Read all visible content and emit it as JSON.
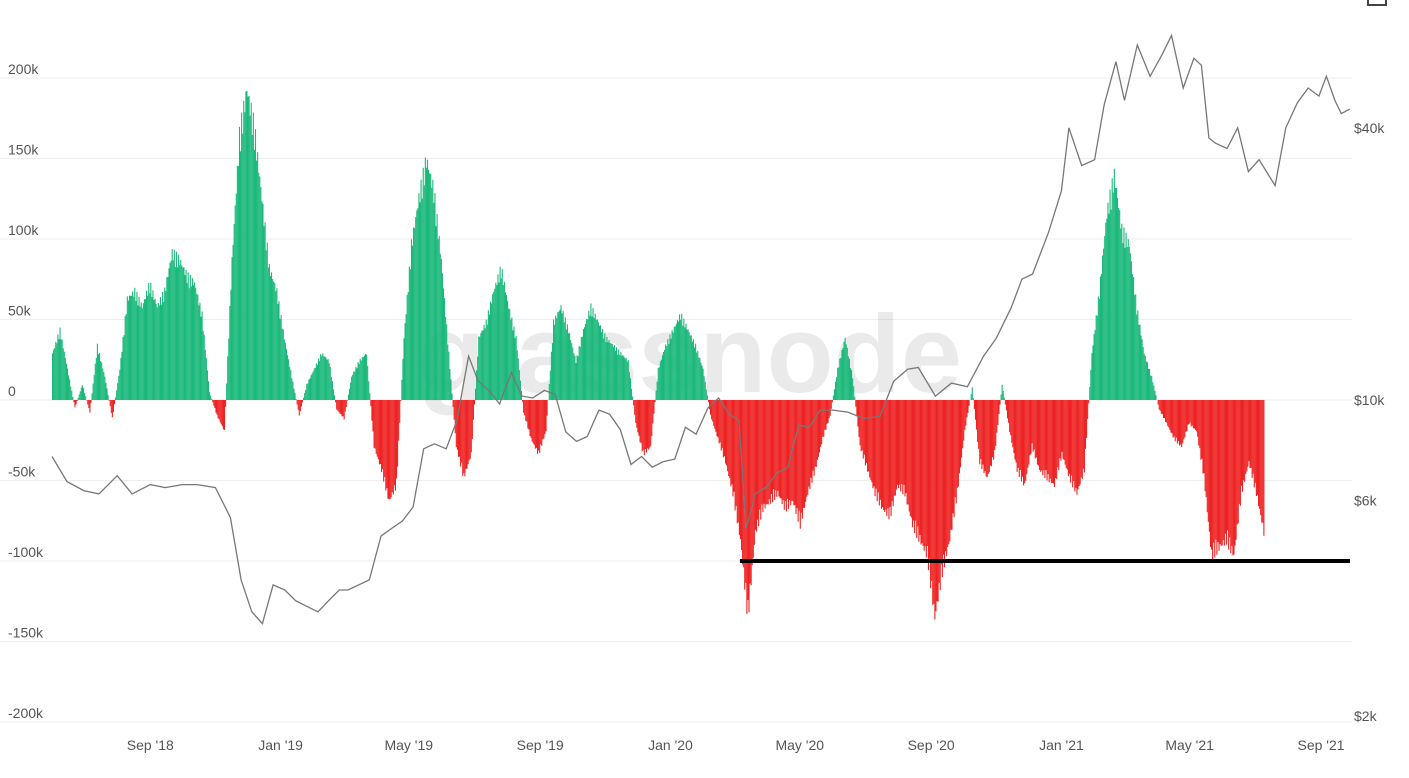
{
  "watermark": "glassnode",
  "chart_data": {
    "type": "bar",
    "title": "",
    "xlabel": "",
    "ylabel": "",
    "ylim": [
      -200000,
      200000
    ],
    "y2_scale": "log",
    "y2lim": [
      2000,
      60000
    ],
    "grid": true,
    "bar_colors": {
      "positive": "#1ab87a",
      "negative": "#ee2222"
    },
    "price_color": "#777777",
    "y_ticks": [
      {
        "value": 200000,
        "label": "200k"
      },
      {
        "value": 150000,
        "label": "150k"
      },
      {
        "value": 100000,
        "label": "100k"
      },
      {
        "value": 50000,
        "label": "50k"
      },
      {
        "value": 0,
        "label": "0"
      },
      {
        "value": -50000,
        "label": "-50k"
      },
      {
        "value": -100000,
        "label": "-100k"
      },
      {
        "value": -150000,
        "label": "-150k"
      },
      {
        "value": -200000,
        "label": "-200k"
      }
    ],
    "y2_ticks": [
      {
        "value": 40000,
        "label": "$40k"
      },
      {
        "value": 10000,
        "label": "$10k"
      },
      {
        "value": 6000,
        "label": "$6k"
      },
      {
        "value": 2000,
        "label": "$2k"
      }
    ],
    "x_range": [
      "2018-06-01",
      "2021-09-30"
    ],
    "x_ticks": [
      {
        "date": "2018-09-01",
        "label": "Sep '18"
      },
      {
        "date": "2019-01-01",
        "label": "Jan '19"
      },
      {
        "date": "2019-05-01",
        "label": "May '19"
      },
      {
        "date": "2019-09-01",
        "label": "Sep '19"
      },
      {
        "date": "2020-01-01",
        "label": "Jan '20"
      },
      {
        "date": "2020-05-01",
        "label": "May '20"
      },
      {
        "date": "2020-09-01",
        "label": "Sep '20"
      },
      {
        "date": "2021-01-01",
        "label": "Jan '21"
      },
      {
        "date": "2021-05-01",
        "label": "May '21"
      },
      {
        "date": "2021-09-01",
        "label": "Sep '21"
      }
    ],
    "bars": [
      [
        "2018-06-01",
        30000
      ],
      [
        "2018-06-08",
        45000
      ],
      [
        "2018-06-15",
        20000
      ],
      [
        "2018-06-22",
        -5000
      ],
      [
        "2018-06-29",
        10000
      ],
      [
        "2018-07-06",
        -8000
      ],
      [
        "2018-07-13",
        35000
      ],
      [
        "2018-07-20",
        15000
      ],
      [
        "2018-07-27",
        -12000
      ],
      [
        "2018-08-03",
        20000
      ],
      [
        "2018-08-10",
        65000
      ],
      [
        "2018-08-17",
        70000
      ],
      [
        "2018-08-24",
        60000
      ],
      [
        "2018-08-31",
        75000
      ],
      [
        "2018-09-07",
        60000
      ],
      [
        "2018-09-14",
        70000
      ],
      [
        "2018-09-21",
        95000
      ],
      [
        "2018-09-28",
        90000
      ],
      [
        "2018-10-05",
        80000
      ],
      [
        "2018-10-12",
        75000
      ],
      [
        "2018-10-19",
        55000
      ],
      [
        "2018-10-26",
        5000
      ],
      [
        "2018-11-02",
        -10000
      ],
      [
        "2018-11-09",
        -20000
      ],
      [
        "2018-11-16",
        90000
      ],
      [
        "2018-11-23",
        170000
      ],
      [
        "2018-11-30",
        200000
      ],
      [
        "2018-12-07",
        175000
      ],
      [
        "2018-12-14",
        130000
      ],
      [
        "2018-12-21",
        85000
      ],
      [
        "2018-12-28",
        70000
      ],
      [
        "2019-01-04",
        40000
      ],
      [
        "2019-01-11",
        15000
      ],
      [
        "2019-01-18",
        -10000
      ],
      [
        "2019-01-25",
        10000
      ],
      [
        "2019-02-01",
        20000
      ],
      [
        "2019-02-08",
        30000
      ],
      [
        "2019-02-15",
        25000
      ],
      [
        "2019-02-22",
        -6000
      ],
      [
        "2019-03-01",
        -12000
      ],
      [
        "2019-03-08",
        15000
      ],
      [
        "2019-03-15",
        25000
      ],
      [
        "2019-03-22",
        30000
      ],
      [
        "2019-03-29",
        -30000
      ],
      [
        "2019-04-05",
        -45000
      ],
      [
        "2019-04-12",
        -65000
      ],
      [
        "2019-04-19",
        -55000
      ],
      [
        "2019-04-26",
        40000
      ],
      [
        "2019-05-03",
        100000
      ],
      [
        "2019-05-10",
        130000
      ],
      [
        "2019-05-17",
        155000
      ],
      [
        "2019-05-24",
        135000
      ],
      [
        "2019-05-31",
        90000
      ],
      [
        "2019-06-07",
        30000
      ],
      [
        "2019-06-14",
        -30000
      ],
      [
        "2019-06-21",
        -50000
      ],
      [
        "2019-06-28",
        -35000
      ],
      [
        "2019-07-05",
        40000
      ],
      [
        "2019-07-12",
        50000
      ],
      [
        "2019-07-19",
        70000
      ],
      [
        "2019-07-26",
        85000
      ],
      [
        "2019-08-02",
        60000
      ],
      [
        "2019-08-09",
        40000
      ],
      [
        "2019-08-16",
        -8000
      ],
      [
        "2019-08-23",
        -25000
      ],
      [
        "2019-08-30",
        -35000
      ],
      [
        "2019-09-06",
        -20000
      ],
      [
        "2019-09-13",
        50000
      ],
      [
        "2019-09-20",
        60000
      ],
      [
        "2019-09-27",
        45000
      ],
      [
        "2019-10-04",
        25000
      ],
      [
        "2019-10-11",
        45000
      ],
      [
        "2019-10-18",
        60000
      ],
      [
        "2019-10-25",
        50000
      ],
      [
        "2019-11-01",
        40000
      ],
      [
        "2019-11-08",
        35000
      ],
      [
        "2019-11-15",
        30000
      ],
      [
        "2019-11-22",
        25000
      ],
      [
        "2019-11-29",
        -15000
      ],
      [
        "2019-12-06",
        -35000
      ],
      [
        "2019-12-13",
        -30000
      ],
      [
        "2019-12-20",
        20000
      ],
      [
        "2019-12-27",
        35000
      ],
      [
        "2020-01-03",
        45000
      ],
      [
        "2020-01-10",
        55000
      ],
      [
        "2020-01-17",
        45000
      ],
      [
        "2020-01-24",
        35000
      ],
      [
        "2020-01-31",
        20000
      ],
      [
        "2020-02-07",
        -10000
      ],
      [
        "2020-02-14",
        -25000
      ],
      [
        "2020-02-21",
        -40000
      ],
      [
        "2020-02-28",
        -60000
      ],
      [
        "2020-03-06",
        -90000
      ],
      [
        "2020-03-13",
        -140000
      ],
      [
        "2020-03-20",
        -85000
      ],
      [
        "2020-03-27",
        -70000
      ],
      [
        "2020-04-03",
        -65000
      ],
      [
        "2020-04-10",
        -60000
      ],
      [
        "2020-04-17",
        -70000
      ],
      [
        "2020-04-24",
        -65000
      ],
      [
        "2020-05-01",
        -80000
      ],
      [
        "2020-05-08",
        -60000
      ],
      [
        "2020-05-15",
        -45000
      ],
      [
        "2020-05-22",
        -25000
      ],
      [
        "2020-05-29",
        -10000
      ],
      [
        "2020-06-05",
        20000
      ],
      [
        "2020-06-12",
        40000
      ],
      [
        "2020-06-19",
        15000
      ],
      [
        "2020-06-26",
        -30000
      ],
      [
        "2020-07-03",
        -45000
      ],
      [
        "2020-07-10",
        -60000
      ],
      [
        "2020-07-17",
        -70000
      ],
      [
        "2020-07-24",
        -75000
      ],
      [
        "2020-07-31",
        -55000
      ],
      [
        "2020-08-07",
        -60000
      ],
      [
        "2020-08-14",
        -80000
      ],
      [
        "2020-08-21",
        -90000
      ],
      [
        "2020-08-28",
        -100000
      ],
      [
        "2020-09-04",
        -140000
      ],
      [
        "2020-09-11",
        -110000
      ],
      [
        "2020-09-18",
        -90000
      ],
      [
        "2020-09-25",
        -60000
      ],
      [
        "2020-10-02",
        -20000
      ],
      [
        "2020-10-09",
        8000
      ],
      [
        "2020-10-16",
        -40000
      ],
      [
        "2020-10-23",
        -50000
      ],
      [
        "2020-10-30",
        -35000
      ],
      [
        "2020-11-06",
        10000
      ],
      [
        "2020-11-13",
        -20000
      ],
      [
        "2020-11-20",
        -45000
      ],
      [
        "2020-11-27",
        -55000
      ],
      [
        "2020-12-04",
        -30000
      ],
      [
        "2020-12-11",
        -45000
      ],
      [
        "2020-12-18",
        -50000
      ],
      [
        "2020-12-25",
        -55000
      ],
      [
        "2021-01-01",
        -35000
      ],
      [
        "2021-01-08",
        -50000
      ],
      [
        "2021-01-15",
        -60000
      ],
      [
        "2021-01-22",
        -45000
      ],
      [
        "2021-01-29",
        30000
      ],
      [
        "2021-02-05",
        70000
      ],
      [
        "2021-02-12",
        120000
      ],
      [
        "2021-02-19",
        145000
      ],
      [
        "2021-02-26",
        110000
      ],
      [
        "2021-03-05",
        100000
      ],
      [
        "2021-03-12",
        60000
      ],
      [
        "2021-03-19",
        30000
      ],
      [
        "2021-03-26",
        15000
      ],
      [
        "2021-04-02",
        -6000
      ],
      [
        "2021-04-09",
        -15000
      ],
      [
        "2021-04-16",
        -25000
      ],
      [
        "2021-04-23",
        -30000
      ],
      [
        "2021-04-30",
        -15000
      ],
      [
        "2021-05-07",
        -20000
      ],
      [
        "2021-05-14",
        -50000
      ],
      [
        "2021-05-21",
        -100000
      ],
      [
        "2021-05-28",
        -95000
      ],
      [
        "2021-06-04",
        -90000
      ],
      [
        "2021-06-11",
        -100000
      ],
      [
        "2021-06-18",
        -60000
      ],
      [
        "2021-06-25",
        -40000
      ],
      [
        "2021-07-02",
        -60000
      ],
      [
        "2021-07-09",
        -85000
      ]
    ],
    "price": [
      [
        "2018-06-01",
        7500
      ],
      [
        "2018-06-15",
        6600
      ],
      [
        "2018-07-01",
        6300
      ],
      [
        "2018-07-15",
        6200
      ],
      [
        "2018-08-01",
        6800
      ],
      [
        "2018-08-15",
        6200
      ],
      [
        "2018-09-01",
        6500
      ],
      [
        "2018-09-15",
        6400
      ],
      [
        "2018-10-01",
        6500
      ],
      [
        "2018-10-15",
        6500
      ],
      [
        "2018-11-01",
        6400
      ],
      [
        "2018-11-15",
        5500
      ],
      [
        "2018-11-25",
        4000
      ],
      [
        "2018-12-05",
        3400
      ],
      [
        "2018-12-15",
        3200
      ],
      [
        "2018-12-25",
        3900
      ],
      [
        "2019-01-05",
        3800
      ],
      [
        "2019-01-15",
        3600
      ],
      [
        "2019-01-25",
        3500
      ],
      [
        "2019-02-05",
        3400
      ],
      [
        "2019-02-15",
        3600
      ],
      [
        "2019-02-25",
        3800
      ],
      [
        "2019-03-05",
        3800
      ],
      [
        "2019-03-15",
        3900
      ],
      [
        "2019-03-25",
        4000
      ],
      [
        "2019-04-05",
        5000
      ],
      [
        "2019-04-15",
        5200
      ],
      [
        "2019-04-25",
        5400
      ],
      [
        "2019-05-05",
        5800
      ],
      [
        "2019-05-15",
        7800
      ],
      [
        "2019-05-25",
        8000
      ],
      [
        "2019-06-05",
        7800
      ],
      [
        "2019-06-15",
        9000
      ],
      [
        "2019-06-26",
        12500
      ],
      [
        "2019-07-05",
        11000
      ],
      [
        "2019-07-15",
        10500
      ],
      [
        "2019-07-25",
        9800
      ],
      [
        "2019-08-05",
        11500
      ],
      [
        "2019-08-15",
        10200
      ],
      [
        "2019-08-25",
        10100
      ],
      [
        "2019-09-05",
        10500
      ],
      [
        "2019-09-15",
        10300
      ],
      [
        "2019-09-25",
        8500
      ],
      [
        "2019-10-05",
        8100
      ],
      [
        "2019-10-15",
        8300
      ],
      [
        "2019-10-26",
        9500
      ],
      [
        "2019-11-05",
        9300
      ],
      [
        "2019-11-15",
        8600
      ],
      [
        "2019-11-25",
        7200
      ],
      [
        "2019-12-05",
        7500
      ],
      [
        "2019-12-15",
        7100
      ],
      [
        "2019-12-25",
        7300
      ],
      [
        "2020-01-05",
        7400
      ],
      [
        "2020-01-15",
        8700
      ],
      [
        "2020-01-25",
        8400
      ],
      [
        "2020-02-05",
        9600
      ],
      [
        "2020-02-15",
        10100
      ],
      [
        "2020-02-25",
        9300
      ],
      [
        "2020-03-05",
        9000
      ],
      [
        "2020-03-12",
        5200
      ],
      [
        "2020-03-20",
        6200
      ],
      [
        "2020-03-30",
        6400
      ],
      [
        "2020-04-10",
        6900
      ],
      [
        "2020-04-20",
        7100
      ],
      [
        "2020-04-30",
        8800
      ],
      [
        "2020-05-10",
        8700
      ],
      [
        "2020-05-20",
        9500
      ],
      [
        "2020-06-01",
        9500
      ],
      [
        "2020-06-15",
        9400
      ],
      [
        "2020-06-30",
        9100
      ],
      [
        "2020-07-15",
        9200
      ],
      [
        "2020-07-28",
        11000
      ],
      [
        "2020-08-10",
        11700
      ],
      [
        "2020-08-20",
        11800
      ],
      [
        "2020-09-05",
        10200
      ],
      [
        "2020-09-20",
        10900
      ],
      [
        "2020-10-05",
        10700
      ],
      [
        "2020-10-20",
        12500
      ],
      [
        "2020-11-01",
        13700
      ],
      [
        "2020-11-15",
        16000
      ],
      [
        "2020-11-25",
        18500
      ],
      [
        "2020-12-05",
        19000
      ],
      [
        "2020-12-20",
        23500
      ],
      [
        "2021-01-01",
        29000
      ],
      [
        "2021-01-08",
        40000
      ],
      [
        "2021-01-20",
        33000
      ],
      [
        "2021-02-01",
        34000
      ],
      [
        "2021-02-10",
        45000
      ],
      [
        "2021-02-21",
        56000
      ],
      [
        "2021-03-01",
        46000
      ],
      [
        "2021-03-13",
        61000
      ],
      [
        "2021-03-25",
        52000
      ],
      [
        "2021-04-05",
        58000
      ],
      [
        "2021-04-14",
        64000
      ],
      [
        "2021-04-25",
        49000
      ],
      [
        "2021-05-05",
        57000
      ],
      [
        "2021-05-12",
        55000
      ],
      [
        "2021-05-19",
        38000
      ],
      [
        "2021-05-25",
        37000
      ],
      [
        "2021-06-05",
        36000
      ],
      [
        "2021-06-15",
        40000
      ],
      [
        "2021-06-25",
        32000
      ],
      [
        "2021-07-05",
        34000
      ],
      [
        "2021-07-20",
        29800
      ],
      [
        "2021-07-30",
        40000
      ],
      [
        "2021-08-10",
        45500
      ],
      [
        "2021-08-20",
        49000
      ],
      [
        "2021-08-30",
        47000
      ],
      [
        "2021-09-06",
        52000
      ],
      [
        "2021-09-14",
        46000
      ],
      [
        "2021-09-20",
        43000
      ],
      [
        "2021-09-28",
        44000
      ]
    ],
    "annotations": [
      {
        "type": "hline",
        "y": -100000,
        "x_start": "2020-03-06",
        "x_end": "2021-09-30",
        "color": "#000000"
      }
    ]
  }
}
